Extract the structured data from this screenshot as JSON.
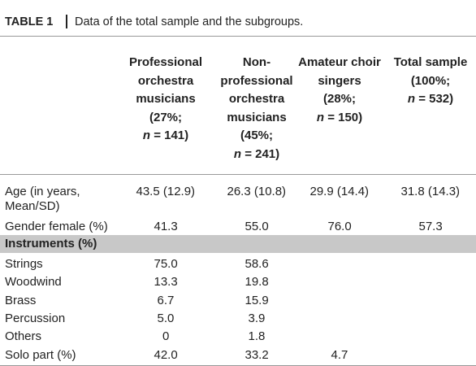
{
  "header": {
    "label": "TABLE 1",
    "title": "Data of the total sample and the subgroups."
  },
  "table": {
    "columns": [
      {
        "name": "Professional orchestra musicians",
        "share": "(27%;",
        "n_label": "n",
        "n_value": "= 141)"
      },
      {
        "name": "Non-professional orchestra musicians",
        "share": "(45%;",
        "n_label": "n",
        "n_value": "= 241)"
      },
      {
        "name": "Amateur choir singers",
        "share": "(28%;",
        "n_label": "n",
        "n_value": "= 150)"
      },
      {
        "name": "Total sample",
        "share": "(100%;",
        "n_label": "n",
        "n_value": "= 532)"
      }
    ],
    "rows": [
      {
        "label": "Age (in years, Mean/SD)",
        "values": [
          "43.5 (12.9)",
          "26.3 (10.8)",
          "29.9 (14.4)",
          "31.8 (14.3)"
        ]
      },
      {
        "label": "Gender female (%)",
        "values": [
          "41.3",
          "55.0",
          "76.0",
          "57.3"
        ]
      },
      {
        "section": "Instruments (%)"
      },
      {
        "label": "Strings",
        "values": [
          "75.0",
          "58.6",
          null,
          null
        ]
      },
      {
        "label": "Woodwind",
        "values": [
          "13.3",
          "19.8",
          null,
          null
        ]
      },
      {
        "label": "Brass",
        "values": [
          "6.7",
          "15.9",
          null,
          null
        ]
      },
      {
        "label": "Percussion",
        "values": [
          "5.0",
          "3.9",
          null,
          null
        ]
      },
      {
        "label": "Others",
        "values": [
          "0",
          "1.8",
          null,
          null
        ]
      },
      {
        "label": "Solo part (%)",
        "values": [
          "42.0",
          "33.2",
          "4.7",
          null
        ]
      }
    ]
  }
}
